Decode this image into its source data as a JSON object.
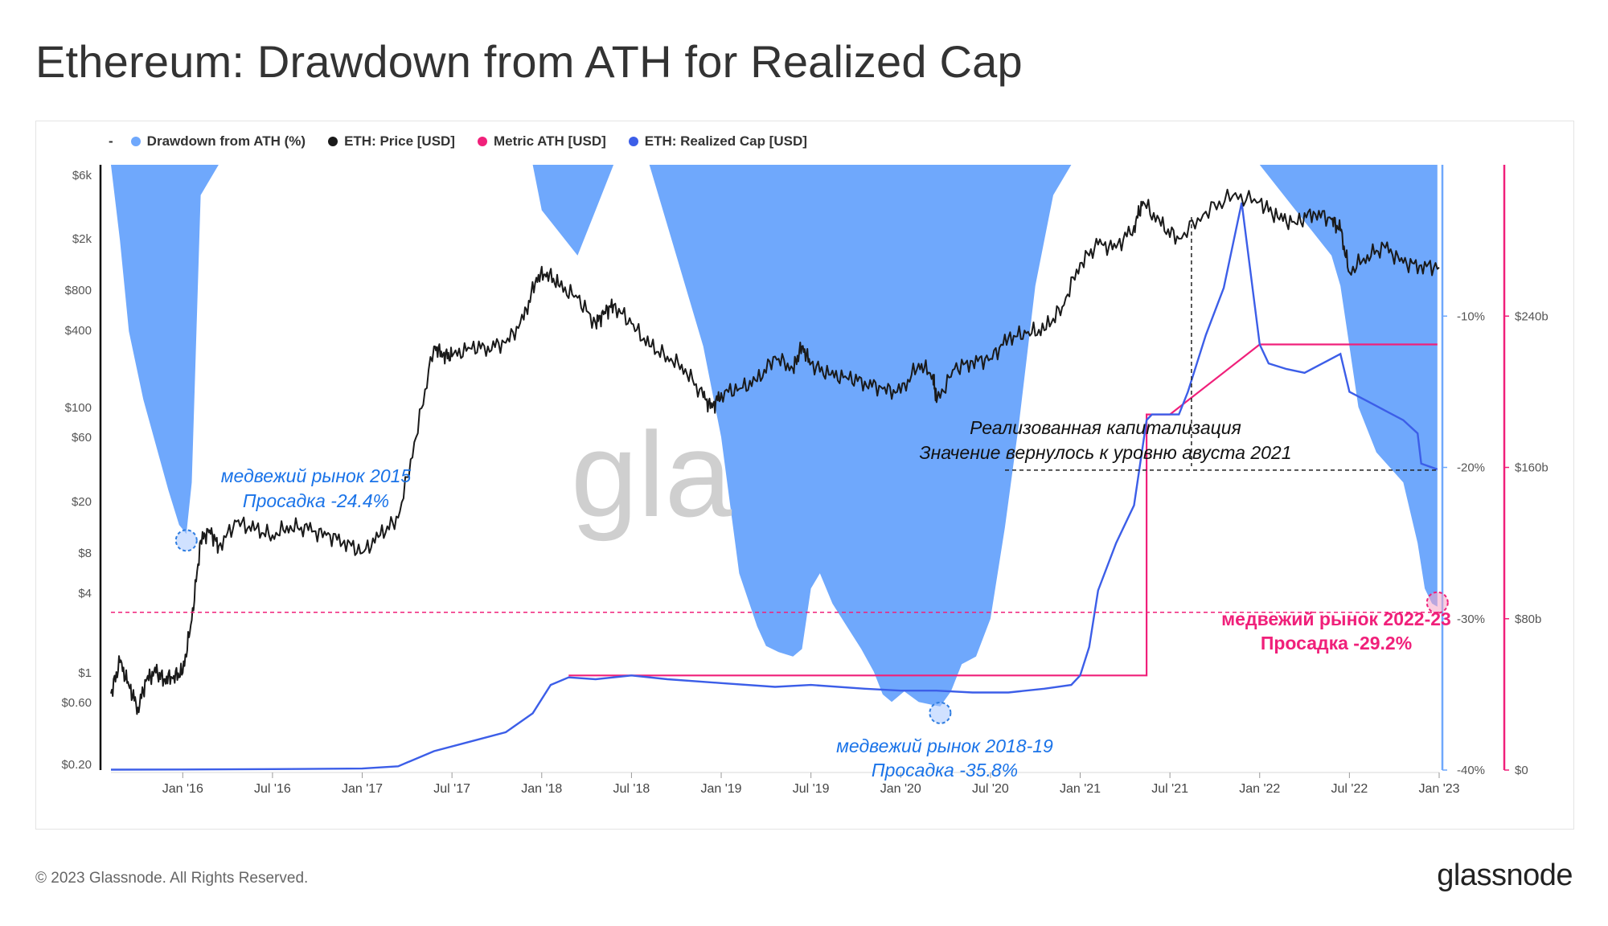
{
  "title": "Ethereum: Drawdown from ATH for Realized Cap",
  "legend": {
    "dash": "-",
    "items": [
      {
        "label": "Drawdown from ATH (%)",
        "color": "#6fa8fc"
      },
      {
        "label": "ETH: Price [USD]",
        "color": "#1a1a1a"
      },
      {
        "label": "Metric ATH [USD]",
        "color": "#f0207a"
      },
      {
        "label": "ETH: Realized Cap [USD]",
        "color": "#3c5ee8"
      }
    ]
  },
  "chart_data": {
    "type": "line",
    "x_ticks": [
      "Jan '16",
      "Jul '16",
      "Jan '17",
      "Jul '17",
      "Jan '18",
      "Jul '18",
      "Jan '19",
      "Jul '19",
      "Jan '20",
      "Jul '20",
      "Jan '21",
      "Jul '21",
      "Jan '22",
      "Jul '22",
      "Jan '23"
    ],
    "y_left_ticks": [
      "$6k",
      "$2k",
      "$800",
      "$400",
      "$100",
      "$60",
      "$20",
      "$8",
      "$4",
      "$1",
      "$0.60",
      "$0.20"
    ],
    "y_right_inner_ticks": [
      "-10%",
      "-20%",
      "-30%",
      "-40%"
    ],
    "y_right_outer_ticks": [
      "$240b",
      "$160b",
      "$80b",
      "$0"
    ],
    "y_left_scale": "log",
    "y_right_inner_range": [
      -40,
      0
    ],
    "y_right_outer_range": [
      0,
      320
    ],
    "series": [
      {
        "name": "Drawdown from ATH (%)",
        "color": "#6fa8fc",
        "x": [
          2015.6,
          2015.65,
          2015.7,
          2015.78,
          2015.85,
          2015.92,
          2015.98,
          2016.02,
          2016.05,
          2016.1,
          2016.2,
          2016.3,
          2016.4,
          2016.5,
          2016.7,
          2016.9,
          2017.05,
          2017.3,
          2017.55,
          2017.8,
          2017.95,
          2018.0,
          2018.2,
          2018.3,
          2018.4,
          2018.5,
          2018.6,
          2018.75,
          2018.9,
          2019.0,
          2019.1,
          2019.2,
          2019.25,
          2019.32,
          2019.4,
          2019.45,
          2019.5,
          2019.55,
          2019.62,
          2019.7,
          2019.78,
          2019.85,
          2019.9,
          2019.95,
          2020.02,
          2020.1,
          2020.18,
          2020.22,
          2020.28,
          2020.34,
          2020.42,
          2020.5,
          2020.58,
          2020.66,
          2020.75,
          2020.85,
          2020.95,
          2021.0,
          2021.05,
          2021.3,
          2021.5,
          2021.7,
          2022.0,
          2022.2,
          2022.4,
          2022.45,
          2022.5,
          2022.55,
          2022.65,
          2022.8,
          2022.88,
          2022.92,
          2022.96,
          2022.99
        ],
        "values": [
          0,
          -5,
          -11,
          -15.5,
          -18.5,
          -21.5,
          -23.8,
          -24.4,
          -21,
          -2,
          0,
          0,
          0,
          0,
          0,
          0,
          0,
          0,
          0,
          0,
          0,
          -3,
          -6,
          -3,
          0,
          0,
          0,
          -6,
          -12,
          -18,
          -27,
          -30.5,
          -31.8,
          -32.2,
          -32.5,
          -32.0,
          -28,
          -27,
          -29,
          -30.5,
          -32,
          -33.5,
          -35,
          -35.5,
          -34.8,
          -35.5,
          -35.7,
          -35.8,
          -34.8,
          -33,
          -32.5,
          -30,
          -24,
          -17,
          -8,
          -2,
          0,
          0,
          0,
          0,
          0,
          0,
          0,
          -3,
          -6,
          -8,
          -12,
          -16,
          -19,
          -21,
          -25,
          -28,
          -29,
          -29.2
        ]
      },
      {
        "name": "ETH: Price [USD]",
        "color": "#1a1a1a",
        "x": [
          2015.6,
          2015.65,
          2015.7,
          2015.75,
          2015.8,
          2015.85,
          2015.9,
          2015.95,
          2016.0,
          2016.05,
          2016.1,
          2016.15,
          2016.2,
          2016.3,
          2016.4,
          2016.5,
          2016.6,
          2016.7,
          2016.8,
          2016.9,
          2017.0,
          2017.1,
          2017.2,
          2017.3,
          2017.4,
          2017.45,
          2017.5,
          2017.6,
          2017.7,
          2017.8,
          2017.9,
          2017.97,
          2018.03,
          2018.1,
          2018.2,
          2018.3,
          2018.35,
          2018.4,
          2018.5,
          2018.6,
          2018.7,
          2018.8,
          2018.9,
          2018.95,
          2019.0,
          2019.1,
          2019.2,
          2019.3,
          2019.4,
          2019.45,
          2019.5,
          2019.6,
          2019.7,
          2019.8,
          2019.9,
          2020.0,
          2020.1,
          2020.18,
          2020.2,
          2020.3,
          2020.4,
          2020.5,
          2020.6,
          2020.7,
          2020.8,
          2020.9,
          2021.0,
          2021.1,
          2021.2,
          2021.3,
          2021.35,
          2021.45,
          2021.55,
          2021.7,
          2021.85,
          2022.0,
          2022.1,
          2022.2,
          2022.3,
          2022.4,
          2022.45,
          2022.5,
          2022.6,
          2022.7,
          2022.8,
          2022.9,
          2023.0
        ],
        "values": [
          0.7,
          1.2,
          0.8,
          0.55,
          0.9,
          1.0,
          0.9,
          0.95,
          1.0,
          2.5,
          10,
          12,
          9,
          14,
          12,
          11,
          13,
          12,
          11,
          10,
          8,
          11,
          15,
          60,
          300,
          260,
          250,
          290,
          300,
          320,
          480,
          1000,
          1100,
          850,
          700,
          450,
          550,
          620,
          450,
          300,
          250,
          200,
          120,
          100,
          130,
          140,
          160,
          250,
          200,
          300,
          220,
          180,
          170,
          160,
          140,
          130,
          220,
          180,
          110,
          200,
          230,
          240,
          350,
          380,
          400,
          600,
          1300,
          1800,
          1700,
          2500,
          3800,
          2500,
          2000,
          3200,
          4200,
          3800,
          2900,
          2600,
          3200,
          2800,
          2300,
          1100,
          1500,
          1700,
          1300,
          1250,
          1200
        ]
      },
      {
        "name": "ETH: Realized Cap [USD]",
        "color": "#3c5ee8",
        "x": [
          2015.6,
          2016.0,
          2016.5,
          2017.0,
          2017.2,
          2017.4,
          2017.6,
          2017.8,
          2017.95,
          2018.05,
          2018.15,
          2018.3,
          2018.5,
          2018.7,
          2019.0,
          2019.3,
          2019.5,
          2019.8,
          2020.0,
          2020.2,
          2020.4,
          2020.6,
          2020.8,
          2020.95,
          2021.0,
          2021.05,
          2021.1,
          2021.2,
          2021.3,
          2021.37,
          2021.4,
          2021.5,
          2021.55,
          2021.6,
          2021.7,
          2021.8,
          2021.9,
          2022.0,
          2022.05,
          2022.15,
          2022.25,
          2022.35,
          2022.45,
          2022.5,
          2022.6,
          2022.7,
          2022.8,
          2022.88,
          2022.9,
          2022.99
        ],
        "values": [
          0.2,
          0.3,
          0.5,
          0.8,
          2,
          10,
          15,
          20,
          30,
          45,
          49,
          48,
          50,
          48,
          46,
          44,
          45,
          43,
          42,
          42,
          41,
          41,
          43,
          45,
          50,
          65,
          95,
          120,
          140,
          185,
          188,
          188,
          188,
          200,
          230,
          255,
          300,
          225,
          215,
          212,
          210,
          215,
          220,
          200,
          195,
          190,
          185,
          178,
          162,
          159
        ]
      },
      {
        "name": "Metric ATH [USD]",
        "color": "#f0207a",
        "x": [
          2018.15,
          2021.0,
          2021.0,
          2021.37,
          2021.37,
          2021.5,
          2021.5,
          2022.0,
          2022.0,
          2022.99
        ],
        "values": [
          50,
          50,
          50,
          50,
          188,
          188,
          188,
          225,
          225,
          225
        ]
      }
    ]
  },
  "annotations": {
    "bear_2015_line1": "медвежий рынок 2015",
    "bear_2015_line2": "Просадка -24.4%",
    "bear_2018_line1": "медвежий рынок 2018-19",
    "bear_2018_line2": "Просадка -35.8%",
    "bear_2022_line1": "медвежий рынок 2022-23",
    "bear_2022_line2": "Просадка -29.2%",
    "realized_line1": "Реализованная капитализация",
    "realized_line2": "Значение вернулось к уровню авуста 2021"
  },
  "watermark": "gla",
  "footer": {
    "copyright": "© 2023 Glassnode. All Rights Reserved.",
    "logo": "glassnode"
  }
}
